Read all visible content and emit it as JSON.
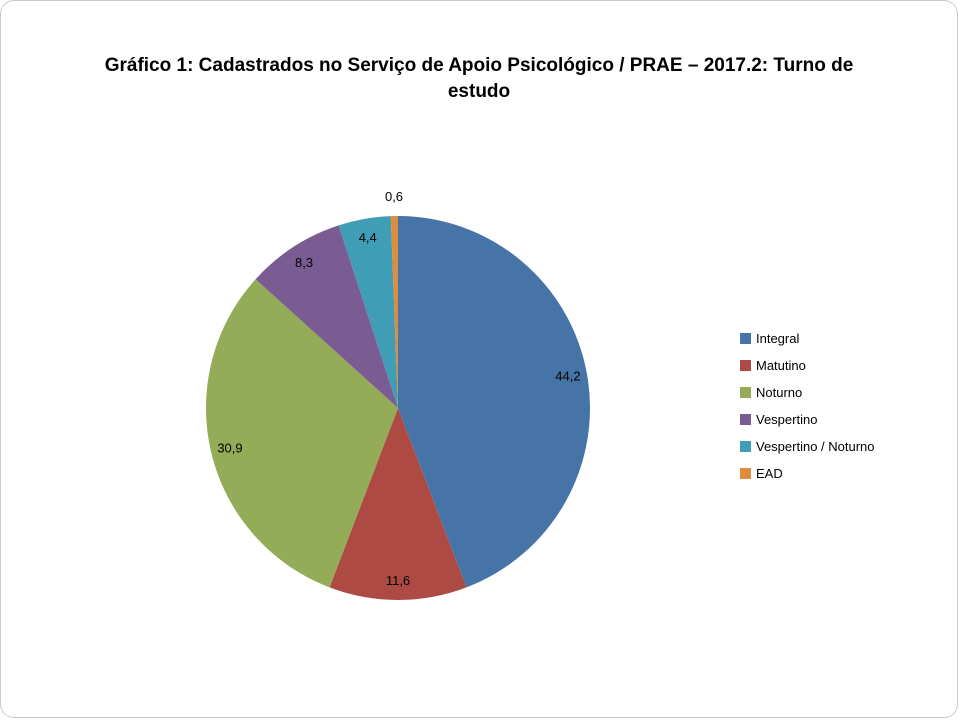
{
  "chart_data": {
    "type": "pie",
    "title": "Gráfico 1: Cadastrados no Serviço de Apoio Psicológico / PRAE – 2017.2: Turno de estudo",
    "categories": [
      "Integral",
      "Matutino",
      "Noturno",
      "Vespertino",
      "Vespertino / Noturno",
      "EAD"
    ],
    "values": [
      44.2,
      11.6,
      30.9,
      8.3,
      4.4,
      0.6
    ],
    "labels": [
      "44,2",
      "11,6",
      "30,9",
      "8,3",
      "4,4",
      "0,6"
    ],
    "colors": [
      "#4674A7",
      "#AE4A44",
      "#94AB57",
      "#7A5C93",
      "#3F9DB5",
      "#DE8D3F"
    ],
    "legend_position": "right",
    "start_angle_deg": 0,
    "direction": "clockwise",
    "label_decimal": "comma"
  }
}
